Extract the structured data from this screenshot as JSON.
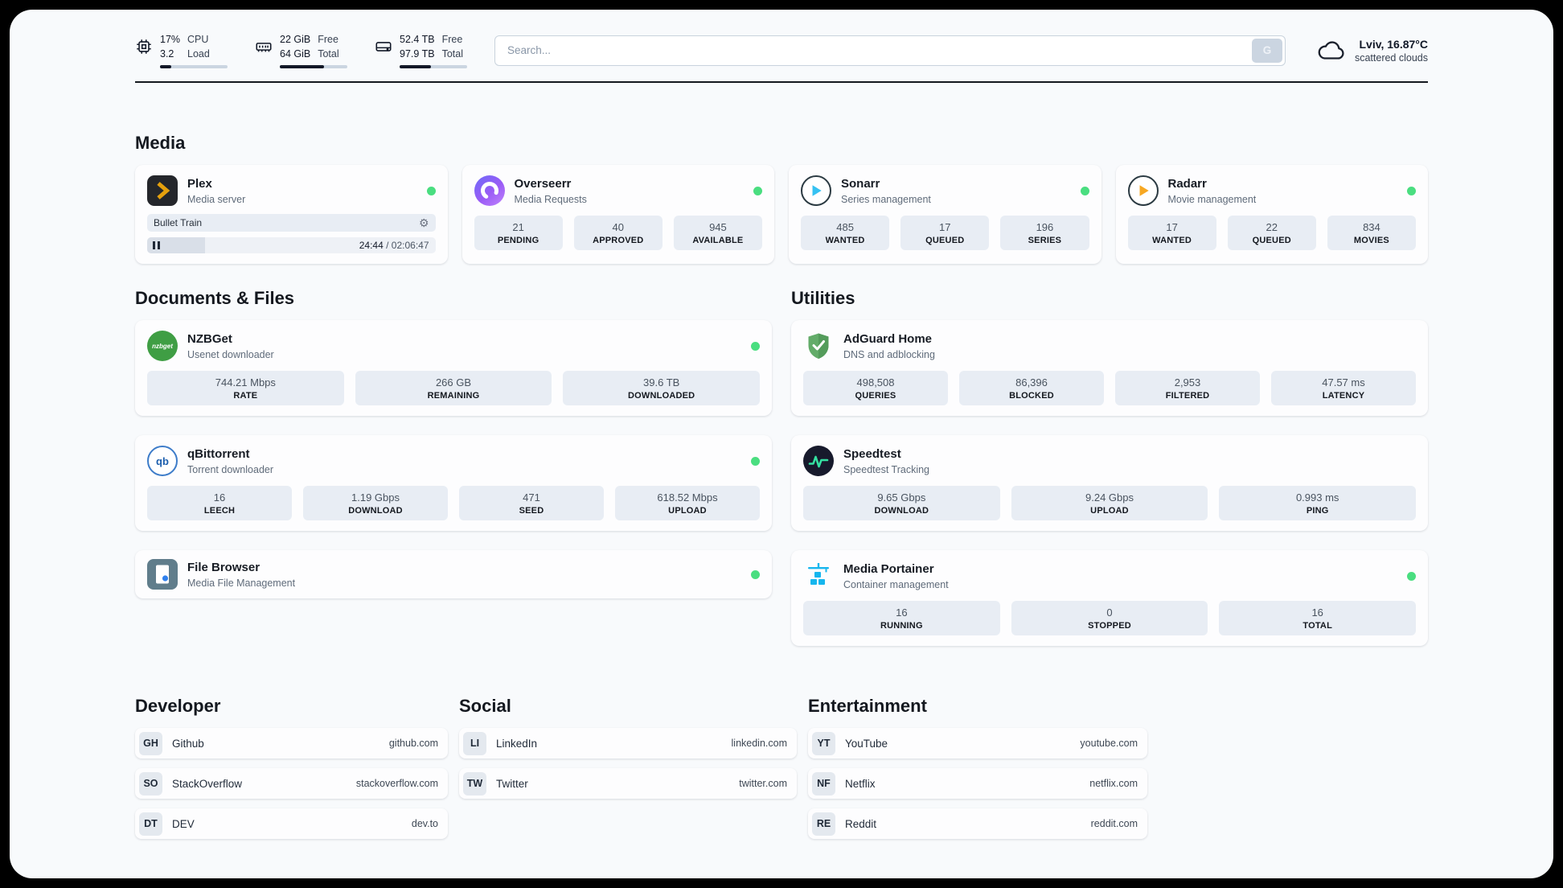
{
  "colors": {
    "status_online": "#4ade80"
  },
  "header": {
    "cpu": {
      "value_top": "17%",
      "value_bottom": "3.2",
      "label_top": "CPU",
      "label_bottom": "Load",
      "usage_percent": 17
    },
    "ram": {
      "value_top": "22 GiB",
      "value_bottom": "64 GiB",
      "label_top": "Free",
      "label_bottom": "Total",
      "usage_percent": 66
    },
    "disk": {
      "value_top": "52.4 TB",
      "value_bottom": "97.9 TB",
      "label_top": "Free",
      "label_bottom": "Total",
      "usage_percent": 47
    },
    "search": {
      "placeholder": "Search...",
      "engine_button": "G"
    },
    "weather": {
      "location": "Lviv, 16.87°C",
      "condition": "scattered clouds"
    }
  },
  "media": {
    "title": "Media",
    "plex": {
      "name": "Plex",
      "subtitle": "Media server",
      "now_playing": "Bullet Train",
      "elapsed": "24:44",
      "remaining": " / 02:06:47",
      "progress_percent": 20
    },
    "overseerr": {
      "name": "Overseerr",
      "subtitle": "Media Requests",
      "stats": [
        {
          "value": "21",
          "label": "PENDING"
        },
        {
          "value": "40",
          "label": "APPROVED"
        },
        {
          "value": "945",
          "label": "AVAILABLE"
        }
      ]
    },
    "sonarr": {
      "name": "Sonarr",
      "subtitle": "Series management",
      "stats": [
        {
          "value": "485",
          "label": "WANTED"
        },
        {
          "value": "17",
          "label": "QUEUED"
        },
        {
          "value": "196",
          "label": "SERIES"
        }
      ]
    },
    "radarr": {
      "name": "Radarr",
      "subtitle": "Movie management",
      "stats": [
        {
          "value": "17",
          "label": "WANTED"
        },
        {
          "value": "22",
          "label": "QUEUED"
        },
        {
          "value": "834",
          "label": "MOVIES"
        }
      ]
    }
  },
  "documents": {
    "title": "Documents & Files",
    "nzbget": {
      "name": "NZBGet",
      "subtitle": "Usenet downloader",
      "icon_text": "nzbget",
      "stats": [
        {
          "value": "744.21 Mbps",
          "label": "RATE"
        },
        {
          "value": "266 GB",
          "label": "REMAINING"
        },
        {
          "value": "39.6 TB",
          "label": "DOWNLOADED"
        }
      ]
    },
    "qbittorrent": {
      "name": "qBittorrent",
      "subtitle": "Torrent downloader",
      "icon_text": "qb",
      "stats": [
        {
          "value": "16",
          "label": "LEECH"
        },
        {
          "value": "1.19 Gbps",
          "label": "DOWNLOAD"
        },
        {
          "value": "471",
          "label": "SEED"
        },
        {
          "value": "618.52 Mbps",
          "label": "UPLOAD"
        }
      ]
    },
    "filebrowser": {
      "name": "File Browser",
      "subtitle": "Media File Management"
    }
  },
  "utilities": {
    "title": "Utilities",
    "adguard": {
      "name": "AdGuard Home",
      "subtitle": "DNS and adblocking",
      "stats": [
        {
          "value": "498,508",
          "label": "QUERIES"
        },
        {
          "value": "86,396",
          "label": "BLOCKED"
        },
        {
          "value": "2,953",
          "label": "FILTERED"
        },
        {
          "value": "47.57 ms",
          "label": "LATENCY"
        }
      ]
    },
    "speedtest": {
      "name": "Speedtest",
      "subtitle": "Speedtest Tracking",
      "stats": [
        {
          "value": "9.65 Gbps",
          "label": "DOWNLOAD"
        },
        {
          "value": "9.24 Gbps",
          "label": "UPLOAD"
        },
        {
          "value": "0.993 ms",
          "label": "PING"
        }
      ]
    },
    "portainer": {
      "name": "Media Portainer",
      "subtitle": "Container management",
      "stats": [
        {
          "value": "16",
          "label": "RUNNING"
        },
        {
          "value": "0",
          "label": "STOPPED"
        },
        {
          "value": "16",
          "label": "TOTAL"
        }
      ]
    }
  },
  "bookmarks": {
    "developer": {
      "title": "Developer",
      "items": [
        {
          "abbr": "GH",
          "name": "Github",
          "url": "github.com"
        },
        {
          "abbr": "SO",
          "name": "StackOverflow",
          "url": "stackoverflow.com"
        },
        {
          "abbr": "DT",
          "name": "DEV",
          "url": "dev.to"
        }
      ]
    },
    "social": {
      "title": "Social",
      "items": [
        {
          "abbr": "LI",
          "name": "LinkedIn",
          "url": "linkedin.com"
        },
        {
          "abbr": "TW",
          "name": "Twitter",
          "url": "twitter.com"
        }
      ]
    },
    "entertainment": {
      "title": "Entertainment",
      "items": [
        {
          "abbr": "YT",
          "name": "YouTube",
          "url": "youtube.com"
        },
        {
          "abbr": "NF",
          "name": "Netflix",
          "url": "netflix.com"
        },
        {
          "abbr": "RE",
          "name": "Reddit",
          "url": "reddit.com"
        }
      ]
    }
  }
}
